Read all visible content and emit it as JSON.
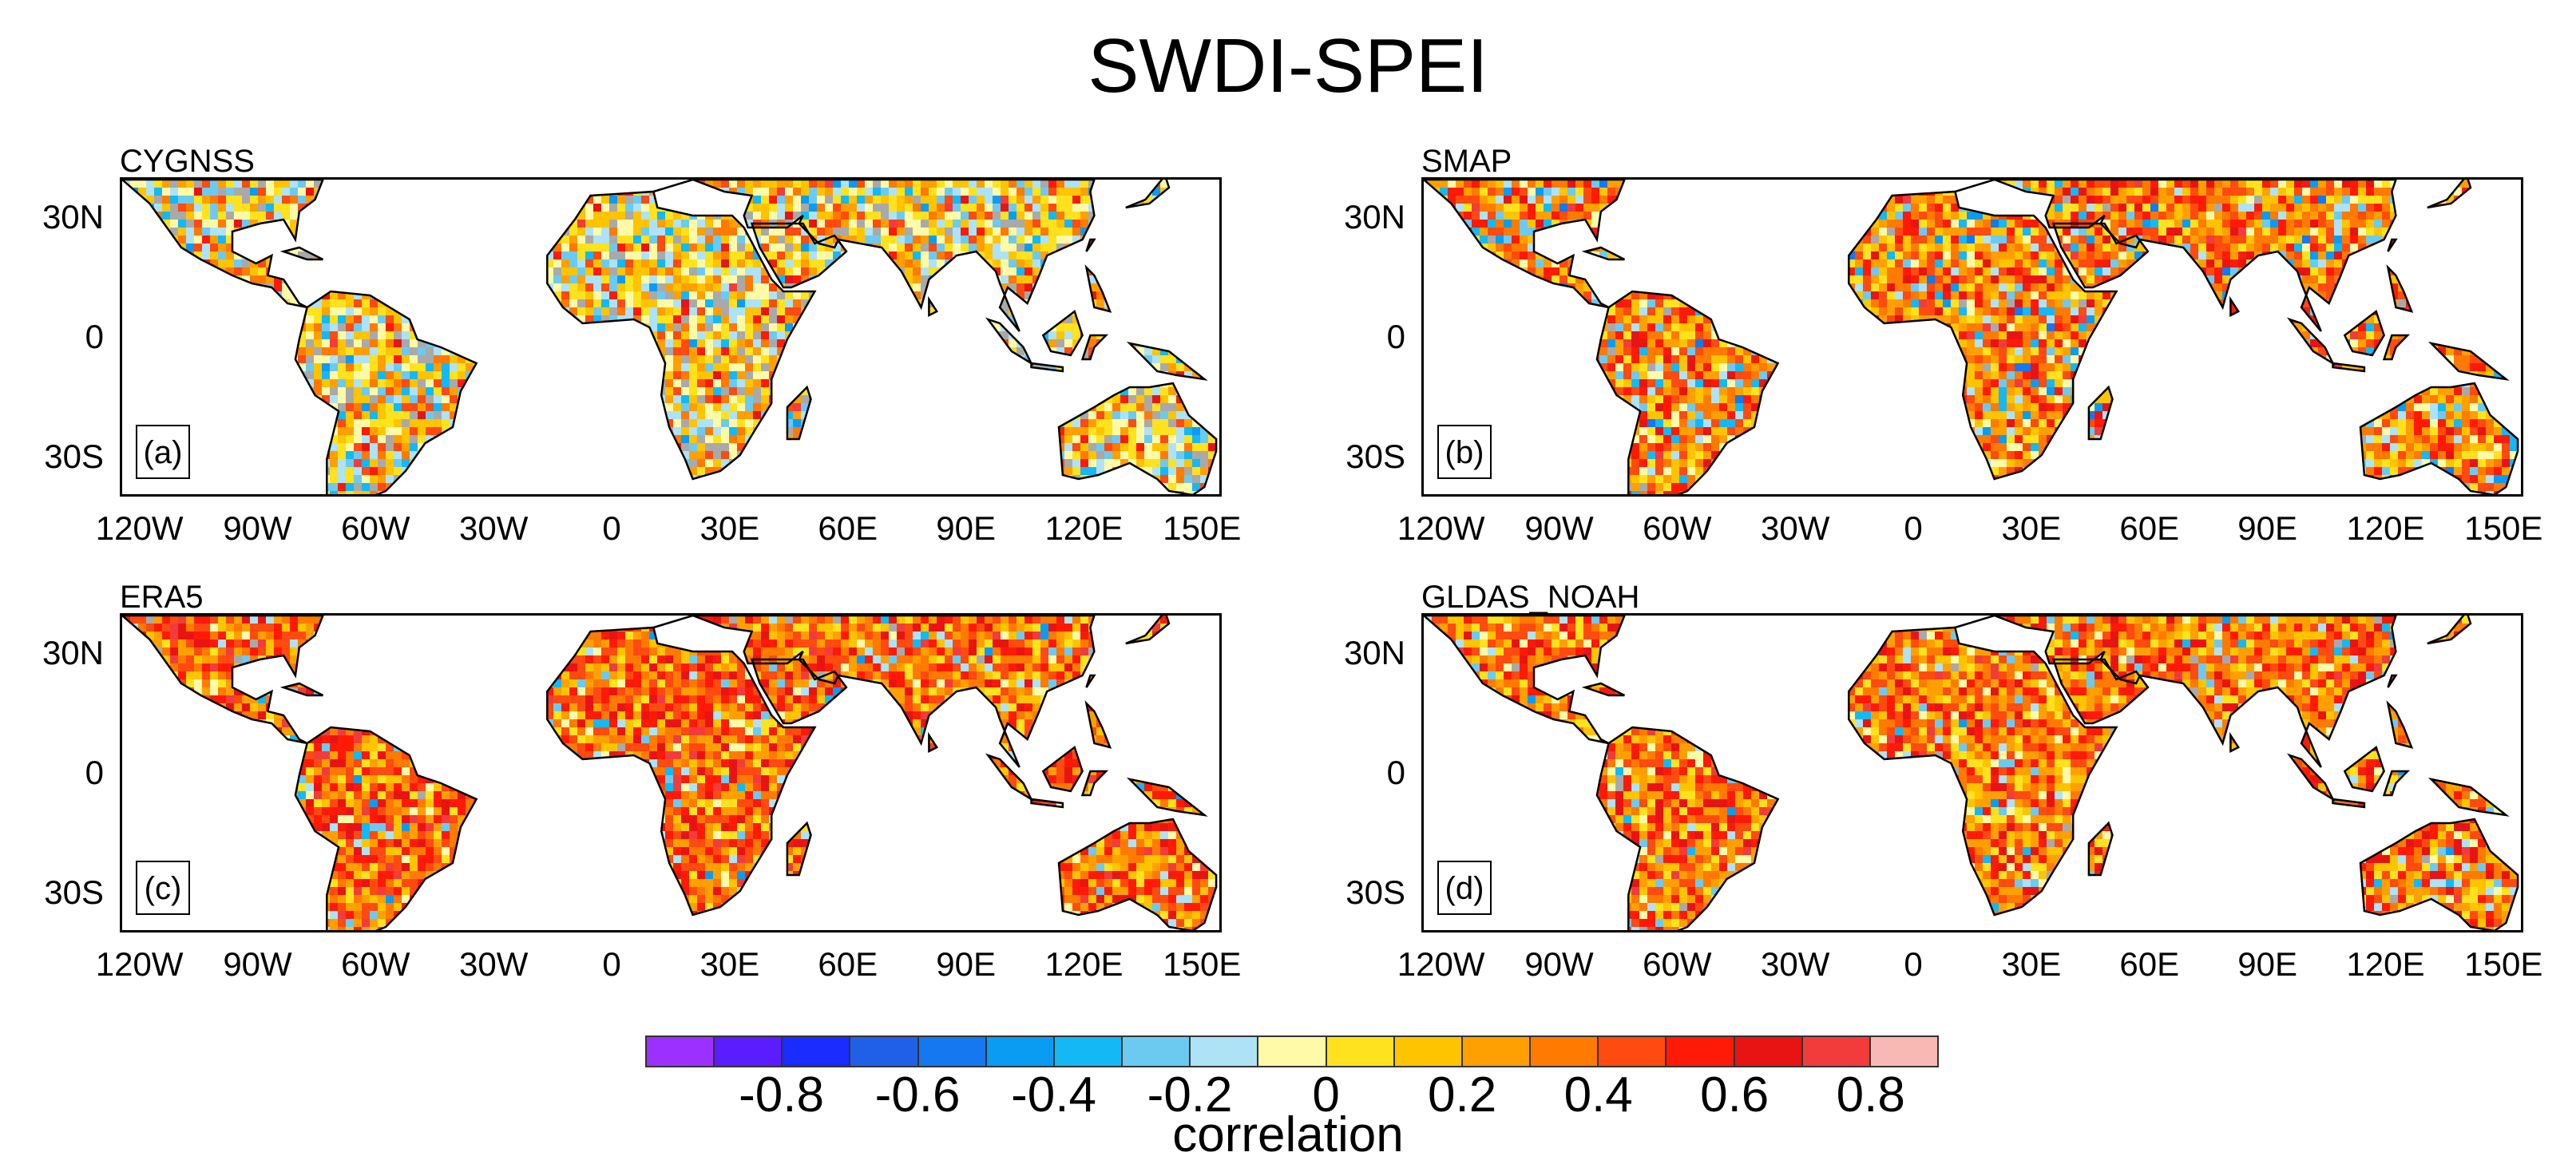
{
  "title": "SWDI-SPEI",
  "panels": [
    {
      "name": "CYGNSS",
      "tag": "(a)",
      "style": "cygnss"
    },
    {
      "name": "SMAP",
      "tag": "(b)",
      "style": "smap"
    },
    {
      "name": "ERA5",
      "tag": "(c)",
      "style": "era5"
    },
    {
      "name": "GLDAS_NOAH",
      "tag": "(d)",
      "style": "gldas"
    }
  ],
  "axes": {
    "lat_labels": [
      "30N",
      "0",
      "30S"
    ],
    "lon_labels": [
      "120W",
      "90W",
      "60W",
      "30W",
      "0",
      "30E",
      "60E",
      "90E",
      "120E",
      "150E"
    ]
  },
  "colorbar": {
    "title": "correlation",
    "labels": [
      "-0.8",
      "-0.6",
      "-0.4",
      "-0.2",
      "0",
      "0.2",
      "0.4",
      "0.6",
      "0.8"
    ],
    "colors": [
      "#9b30ff",
      "#5b1cff",
      "#1a2cff",
      "#2060e8",
      "#1478f0",
      "#0a9cf2",
      "#14b8f4",
      "#6ccaf0",
      "#aee2f6",
      "#fffaa8",
      "#ffe21e",
      "#ffc400",
      "#ffa000",
      "#ff7a00",
      "#ff4a10",
      "#ff1a08",
      "#e81414",
      "#f23c3c",
      "#f8b8b4"
    ]
  },
  "missing_color": "#a9a9a9"
}
